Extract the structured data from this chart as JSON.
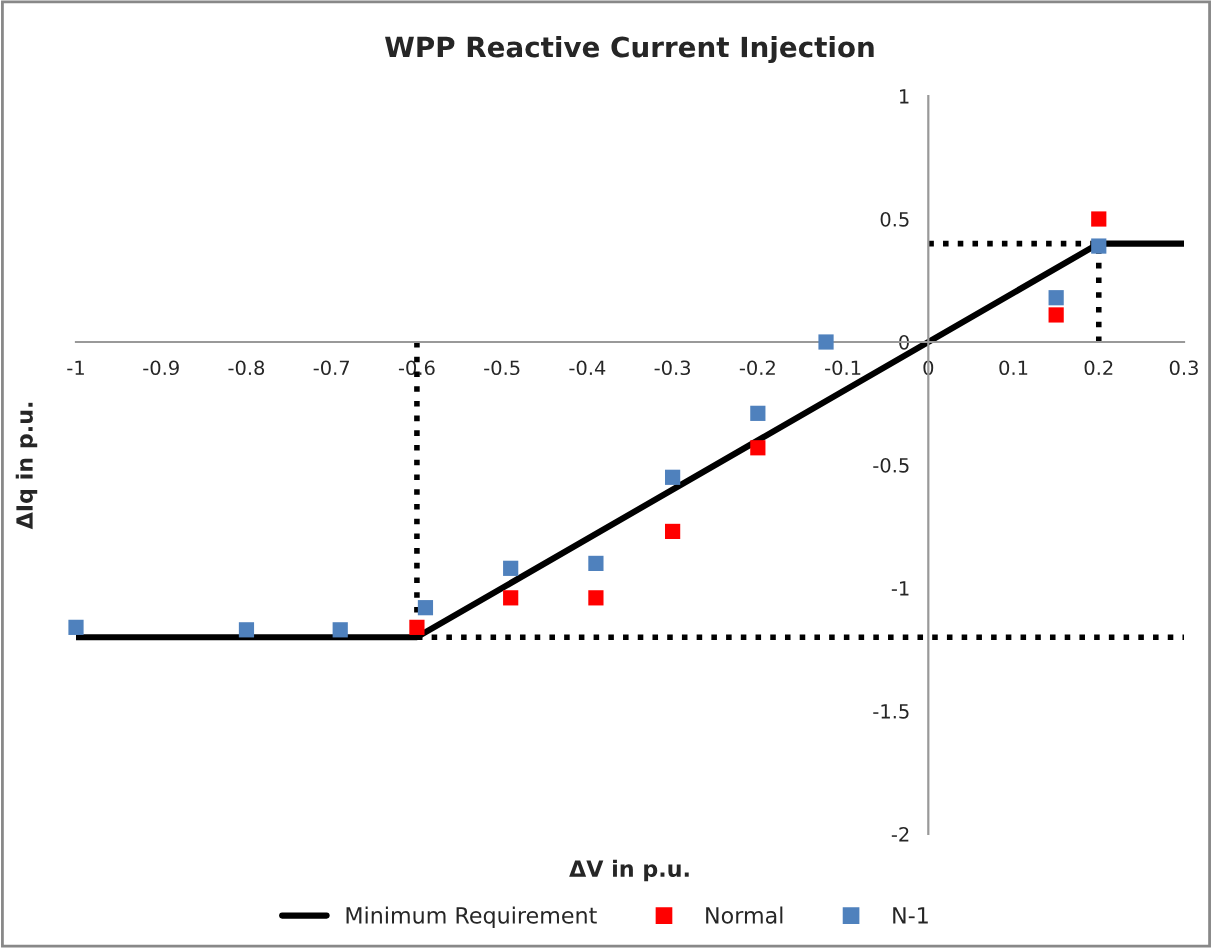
{
  "chart_data": {
    "type": "scatter",
    "title": "WPP Reactive Current Injection",
    "xlabel": "ΔV in p.u.",
    "ylabel": "ΔIq in p.u.",
    "xlim": [
      -1,
      0.3
    ],
    "xticks": [
      -1,
      -0.9,
      -0.8,
      -0.7,
      -0.6,
      -0.5,
      -0.4,
      -0.3,
      -0.2,
      -0.1,
      0,
      0.1,
      0.2,
      0.3
    ],
    "ylim": [
      -2,
      1
    ],
    "yticks": [
      -2,
      -1.5,
      -1,
      -0.5,
      0,
      0.5,
      1
    ],
    "grid": false,
    "legend": "bottom",
    "marker": "square",
    "series": [
      {
        "name": "Minimum Requirement",
        "type": "line",
        "line_style": "solid",
        "marker": "none",
        "color": "#000000",
        "x": [
          -1,
          -0.6,
          0.2,
          0.3
        ],
        "values": [
          -1.2,
          -1.2,
          0.4,
          0.4
        ]
      },
      {
        "name": "Normal",
        "color": "#ff0000",
        "x": [
          -0.6,
          -0.49,
          -0.39,
          -0.3,
          -0.2,
          0.15,
          0.2
        ],
        "values": [
          -1.16,
          -1.04,
          -1.04,
          -0.77,
          -0.43,
          0.11,
          0.5
        ]
      },
      {
        "name": "N-1",
        "color": "#4f81bd",
        "x": [
          -1,
          -0.8,
          -0.69,
          -0.59,
          -0.49,
          -0.39,
          -0.3,
          -0.2,
          -0.12,
          0.15,
          0.2
        ],
        "values": [
          -1.16,
          -1.17,
          -1.17,
          -1.08,
          -0.92,
          -0.9,
          -0.55,
          -0.29,
          0,
          0.18,
          0.39
        ]
      },
      {
        "type": "line",
        "line_style": "dotted",
        "marker": "none",
        "color": "#000000",
        "x": [
          -0.6,
          -0.6
        ],
        "values": [
          0,
          -1.2
        ]
      },
      {
        "type": "line",
        "line_style": "dotted",
        "marker": "none",
        "color": "#000000",
        "x": [
          -0.6,
          0.3
        ],
        "values": [
          -1.2,
          -1.2
        ]
      },
      {
        "type": "line",
        "line_style": "dotted",
        "marker": "none",
        "color": "#000000",
        "x": [
          0,
          0.2
        ],
        "values": [
          0.4,
          0.4
        ]
      },
      {
        "type": "line",
        "line_style": "dotted",
        "marker": "none",
        "color": "#000000",
        "x": [
          0.2,
          0.2
        ],
        "values": [
          0,
          0.4
        ]
      }
    ]
  }
}
